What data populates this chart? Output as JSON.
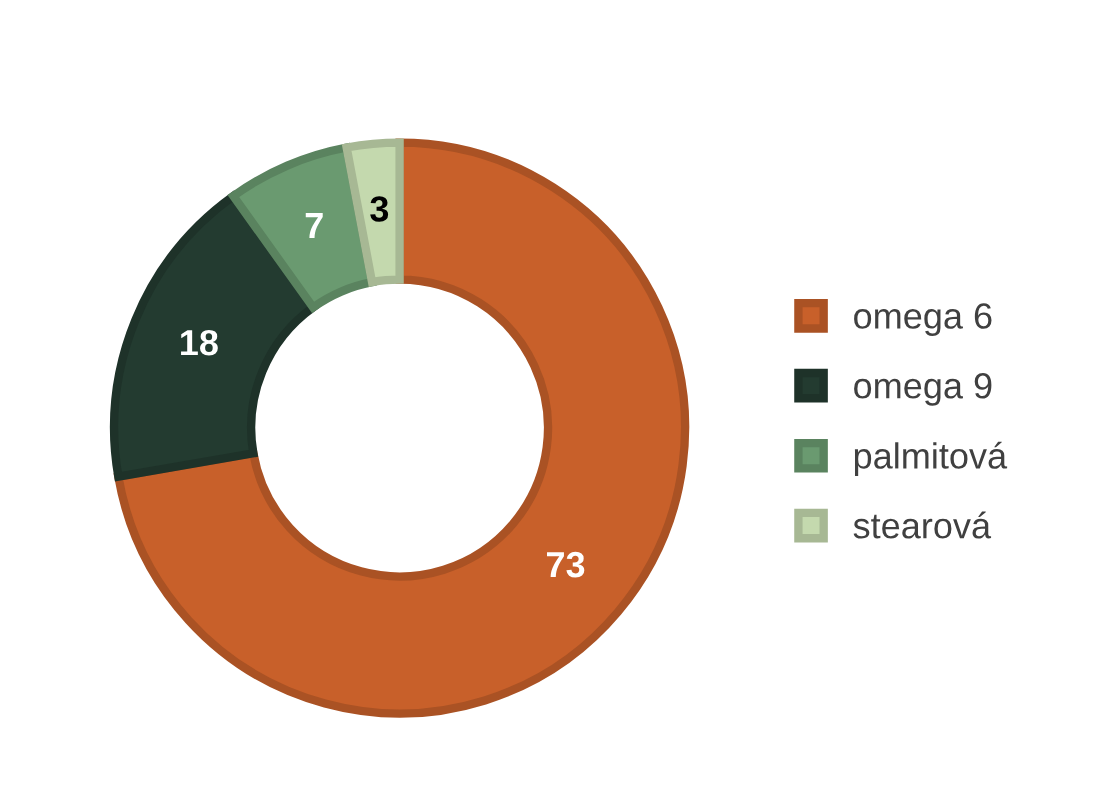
{
  "chart_data": {
    "type": "donut",
    "categories": [
      "omega 6",
      "omega 9",
      "palmitová",
      "stearová"
    ],
    "values": [
      73,
      18,
      7,
      3
    ],
    "colors": [
      "#c8602a",
      "#233b30",
      "#6a9a70",
      "#c4d9ae"
    ],
    "data_labels": true,
    "legend": "right"
  }
}
